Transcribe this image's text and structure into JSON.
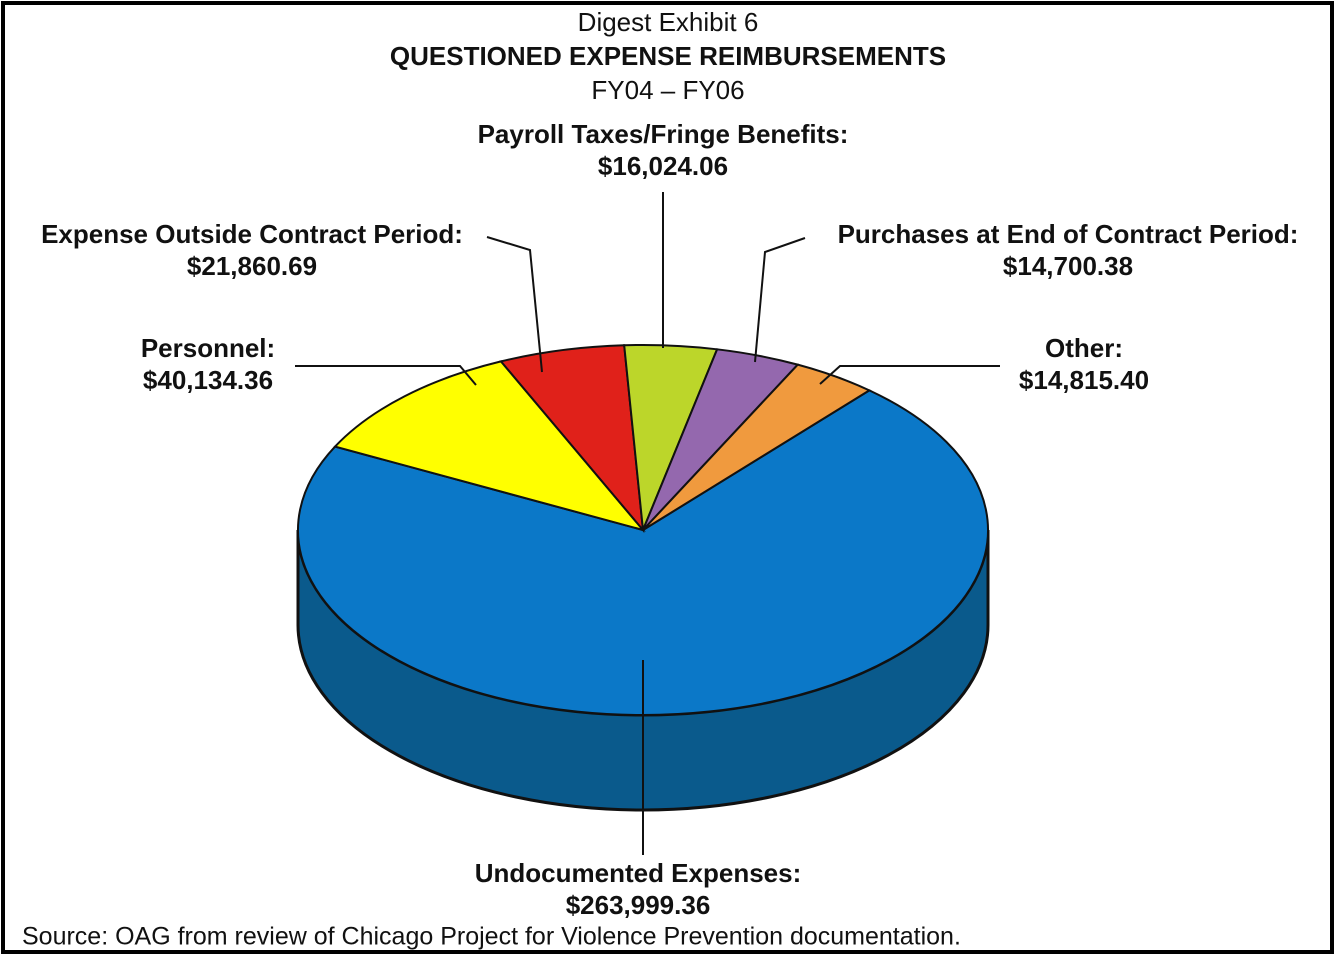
{
  "chart_data": {
    "type": "pie3d",
    "title": "Digest Exhibit 6",
    "heading": "QUESTIONED EXPENSE REIMBURSEMENTS",
    "subtitle": "FY04 – FY06",
    "source": "Source:  OAG from review of Chicago Project for Violence Prevention documentation.",
    "categories": [
      "Undocumented Expenses:",
      "Personnel:",
      "Expense Outside Contract Period:",
      "Payroll Taxes/Fringe Benefits:",
      "Purchases at End of Contract Period:",
      "Other:"
    ],
    "values": [
      263999.36,
      40134.36,
      21860.69,
      16024.06,
      14700.38,
      14815.4
    ],
    "value_labels": [
      "$263,999.36",
      "$40,134.36",
      "$21,860.69",
      "$16,024.06",
      "$14,700.38",
      "$14,815.40"
    ],
    "colors": [
      "#0b78c8",
      "#ffff00",
      "#e0211a",
      "#bcd62a",
      "#9468ae",
      "#f09a3e"
    ],
    "side_color": "#0a5a8c"
  }
}
